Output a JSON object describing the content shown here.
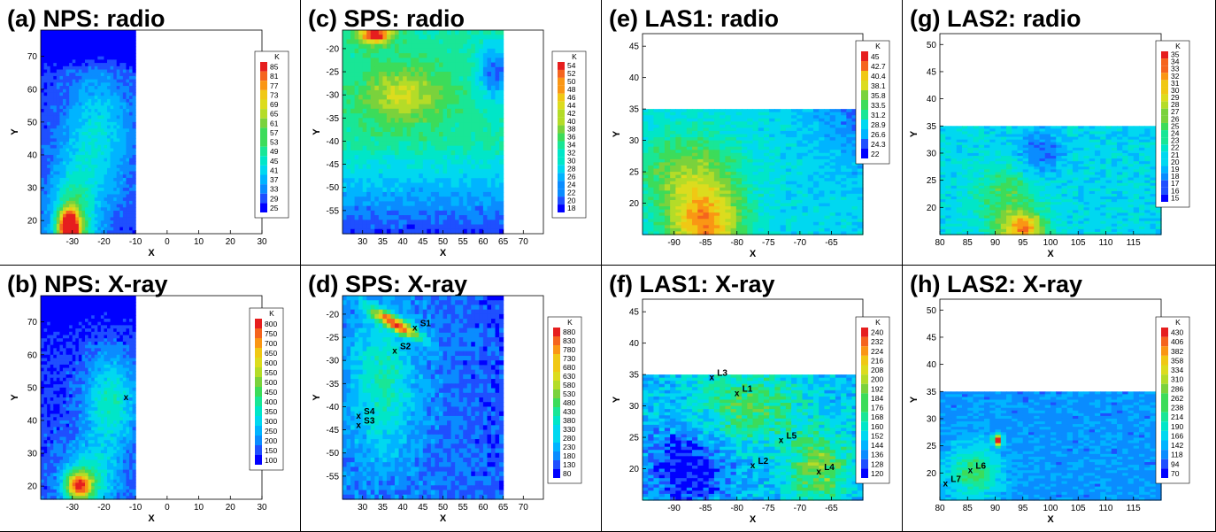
{
  "colormap": [
    "#0000ff",
    "#1f4fff",
    "#0a8cff",
    "#00b4ff",
    "#00d8f0",
    "#00e6c8",
    "#19e696",
    "#3cdc5a",
    "#7ad23c",
    "#b4dc28",
    "#dcdc1e",
    "#f0c814",
    "#fa9614",
    "#f5641e",
    "#e61e1e"
  ],
  "chart_data": [
    {
      "id": "a",
      "type": "heatmap",
      "title": "(a) NPS: radio",
      "xlabel": "X",
      "ylabel": "Y",
      "xlim": [
        -40,
        30
      ],
      "ylim": [
        16,
        78
      ],
      "data_xlim": [
        -40,
        -10
      ],
      "data_ylim": [
        16,
        78
      ],
      "xticks": [
        -30,
        -20,
        -10,
        0,
        10,
        20,
        30
      ],
      "yticks": [
        20,
        30,
        40,
        50,
        60,
        70
      ],
      "legend_unit": "K",
      "legend_levels": [
        85,
        81,
        77,
        73,
        69,
        65,
        61,
        57,
        53,
        49,
        45,
        41,
        37,
        33,
        29,
        25
      ],
      "markers": []
    },
    {
      "id": "b",
      "type": "heatmap",
      "title": "(b) NPS: X-ray",
      "xlabel": "X",
      "ylabel": "Y",
      "xlim": [
        -40,
        30
      ],
      "ylim": [
        16,
        78
      ],
      "data_xlim": [
        -40,
        -10
      ],
      "data_ylim": [
        16,
        78
      ],
      "xticks": [
        -30,
        -20,
        -10,
        0,
        10,
        20,
        30
      ],
      "yticks": [
        20,
        30,
        40,
        50,
        60,
        70
      ],
      "legend_unit": "K",
      "legend_levels": [
        800,
        750,
        700,
        650,
        600,
        550,
        500,
        450,
        400,
        350,
        300,
        250,
        200,
        150,
        100
      ],
      "markers": [
        {
          "x": -13,
          "y": 47,
          "label": ""
        }
      ]
    },
    {
      "id": "c",
      "type": "heatmap",
      "title": "(c) SPS: radio",
      "xlabel": "X",
      "ylabel": "Y",
      "xlim": [
        25,
        75
      ],
      "ylim": [
        -60,
        -16
      ],
      "data_xlim": [
        25,
        65
      ],
      "data_ylim": [
        -60,
        -16
      ],
      "xticks": [
        30,
        35,
        40,
        45,
        50,
        55,
        60,
        65,
        70
      ],
      "yticks": [
        -20,
        -25,
        -30,
        -35,
        -40,
        -45,
        -50,
        -55
      ],
      "legend_unit": "K",
      "legend_levels": [
        54,
        52,
        50,
        48,
        46,
        44,
        42,
        40,
        38,
        36,
        34,
        32,
        30,
        28,
        26,
        24,
        22,
        20,
        18
      ],
      "markers": []
    },
    {
      "id": "d",
      "type": "heatmap",
      "title": "(d) SPS: X-ray",
      "xlabel": "X",
      "ylabel": "Y",
      "xlim": [
        25,
        75
      ],
      "ylim": [
        -60,
        -16
      ],
      "data_xlim": [
        25,
        65
      ],
      "data_ylim": [
        -60,
        -16
      ],
      "xticks": [
        30,
        35,
        40,
        45,
        50,
        55,
        60,
        65,
        70
      ],
      "yticks": [
        -20,
        -25,
        -30,
        -35,
        -40,
        -45,
        -50,
        -55
      ],
      "legend_unit": "K",
      "legend_levels": [
        880,
        830,
        780,
        730,
        680,
        630,
        580,
        530,
        480,
        430,
        380,
        330,
        280,
        230,
        180,
        130,
        80
      ],
      "markers": [
        {
          "x": 43,
          "y": -23,
          "label": "S1"
        },
        {
          "x": 38,
          "y": -28,
          "label": "S2"
        },
        {
          "x": 29,
          "y": -42,
          "label": "S4"
        },
        {
          "x": 29,
          "y": -44,
          "label": "S3"
        }
      ]
    },
    {
      "id": "e",
      "type": "heatmap",
      "title": "(e) LAS1: radio",
      "xlabel": "X",
      "ylabel": "Y",
      "xlim": [
        -95,
        -60
      ],
      "ylim": [
        15,
        47
      ],
      "data_xlim": [
        -95,
        -60
      ],
      "data_ylim": [
        15,
        35
      ],
      "xticks": [
        -90,
        -85,
        -80,
        -75,
        -70,
        -65
      ],
      "yticks": [
        20,
        25,
        30,
        35,
        40,
        45
      ],
      "legend_unit": "K",
      "legend_levels": [
        45,
        42.7,
        40.4,
        38.1,
        35.8,
        33.5,
        31.2,
        28.9,
        26.6,
        24.3,
        22
      ],
      "markers": []
    },
    {
      "id": "f",
      "type": "heatmap",
      "title": "(f) LAS1: X-ray",
      "xlabel": "X",
      "ylabel": "Y",
      "xlim": [
        -95,
        -60
      ],
      "ylim": [
        15,
        47
      ],
      "data_xlim": [
        -95,
        -60
      ],
      "data_ylim": [
        15,
        35
      ],
      "xticks": [
        -90,
        -85,
        -80,
        -75,
        -70,
        -65
      ],
      "yticks": [
        20,
        25,
        30,
        35,
        40,
        45
      ],
      "legend_unit": "K",
      "legend_levels": [
        240,
        232,
        224,
        216,
        208,
        200,
        192,
        184,
        176,
        168,
        160,
        152,
        144,
        136,
        128,
        120
      ],
      "markers": [
        {
          "x": -84,
          "y": 34.5,
          "label": "L3"
        },
        {
          "x": -80,
          "y": 32,
          "label": "L1"
        },
        {
          "x": -73,
          "y": 24.5,
          "label": "L5"
        },
        {
          "x": -77.5,
          "y": 20.5,
          "label": "L2"
        },
        {
          "x": -67,
          "y": 19.5,
          "label": "L4"
        }
      ]
    },
    {
      "id": "g",
      "type": "heatmap",
      "title": "(g) LAS2: radio",
      "xlabel": "X",
      "ylabel": "Y",
      "xlim": [
        80,
        120
      ],
      "ylim": [
        15,
        52
      ],
      "data_xlim": [
        80,
        120
      ],
      "data_ylim": [
        15,
        35
      ],
      "xticks": [
        80,
        85,
        90,
        95,
        100,
        105,
        110,
        115
      ],
      "yticks": [
        20,
        25,
        30,
        35,
        40,
        45,
        50
      ],
      "legend_unit": "K",
      "legend_levels": [
        35,
        34,
        33,
        32,
        31,
        30,
        29,
        28,
        27,
        26,
        25,
        24,
        23,
        22,
        21,
        20,
        19,
        18,
        17,
        16,
        15
      ],
      "markers": []
    },
    {
      "id": "h",
      "type": "heatmap",
      "title": "(h) LAS2: X-ray",
      "xlabel": "X",
      "ylabel": "Y",
      "xlim": [
        80,
        120
      ],
      "ylim": [
        15,
        52
      ],
      "data_xlim": [
        80,
        120
      ],
      "data_ylim": [
        15,
        35
      ],
      "xticks": [
        80,
        85,
        90,
        95,
        100,
        105,
        110,
        115
      ],
      "yticks": [
        20,
        25,
        30,
        35,
        40,
        45,
        50
      ],
      "legend_unit": "K",
      "legend_levels": [
        430,
        406,
        382,
        358,
        334,
        310,
        286,
        262,
        238,
        214,
        190,
        166,
        142,
        118,
        94,
        70
      ],
      "markers": [
        {
          "x": 85.5,
          "y": 20.5,
          "label": "L6"
        },
        {
          "x": 81,
          "y": 18,
          "label": "L7"
        }
      ]
    }
  ]
}
